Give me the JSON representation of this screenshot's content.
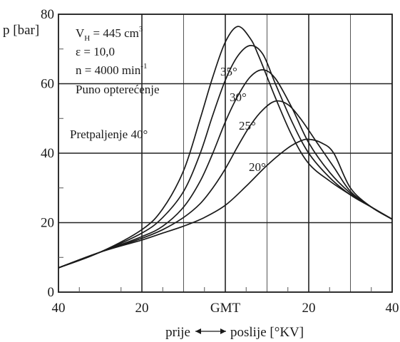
{
  "chart_data": {
    "type": "line",
    "ylabel": "p [bar]",
    "ylim": [
      0,
      80
    ],
    "y_ticks": [
      "0",
      "20",
      "40",
      "60",
      "80"
    ],
    "xlim": [
      -40,
      40
    ],
    "x_ticks": [
      "40",
      "20",
      "GMT",
      "20",
      "40"
    ],
    "x_axis_caption": {
      "left": "prije",
      "right": "poslije [°KV]"
    },
    "grid": true,
    "info": {
      "line1_main": "V",
      "line1_sub": "H",
      "line1_rest": " = 445 cm",
      "line1_sup": "3",
      "line2": "ε = 10,0",
      "line3_main": "n = 4000 min",
      "line3_sup": "-1",
      "line4": "Puno opterećenje"
    },
    "series": [
      {
        "name": "Pretpaljenje  40°",
        "x": [
          -40,
          -30,
          -20,
          -15,
          -10,
          -6,
          -3,
          0,
          3,
          6,
          8,
          12,
          16,
          20,
          25,
          30,
          35,
          40
        ],
        "y": [
          7,
          11.5,
          18,
          24,
          35,
          50,
          62,
          72,
          76.5,
          73,
          68,
          56,
          45,
          37,
          32,
          28,
          24.5,
          21
        ]
      },
      {
        "name": "35°",
        "x": [
          -40,
          -30,
          -20,
          -15,
          -10,
          -6,
          -3,
          0,
          3,
          6,
          9,
          12,
          16,
          20,
          25,
          30,
          35,
          40
        ],
        "y": [
          7,
          11.5,
          17,
          21.5,
          29,
          40,
          51,
          61,
          68,
          71,
          68.5,
          60,
          49,
          40,
          33,
          28,
          24.5,
          21
        ]
      },
      {
        "name": "30°",
        "x": [
          -40,
          -30,
          -20,
          -15,
          -10,
          -6,
          -3,
          0,
          3,
          6,
          9,
          12,
          16,
          20,
          25,
          30,
          35,
          40
        ],
        "y": [
          7,
          11.5,
          16,
          19,
          24.5,
          32,
          40,
          49,
          56.5,
          62,
          64,
          61.5,
          53,
          43,
          34.5,
          28.5,
          24.5,
          21
        ]
      },
      {
        "name": "25°",
        "x": [
          -40,
          -30,
          -20,
          -15,
          -10,
          -6,
          -3,
          0,
          3,
          6,
          9,
          12,
          15,
          18,
          22,
          26,
          30,
          35,
          40
        ],
        "y": [
          7,
          11.5,
          15.5,
          18,
          21.5,
          25.5,
          30,
          35.5,
          42,
          48,
          52.5,
          55,
          54,
          50,
          43,
          36,
          29,
          24.5,
          21
        ]
      },
      {
        "name": "20°",
        "x": [
          -40,
          -30,
          -20,
          -15,
          -10,
          -5,
          0,
          5,
          10,
          15,
          18,
          20,
          23,
          26,
          30,
          35,
          40
        ],
        "y": [
          7,
          11.5,
          15,
          17,
          19,
          21.5,
          25,
          30.5,
          36.5,
          41.5,
          43.5,
          44,
          43,
          40,
          30,
          24.5,
          21
        ]
      }
    ]
  }
}
